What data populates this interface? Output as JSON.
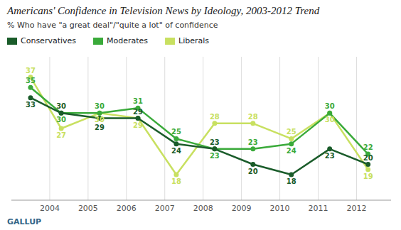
{
  "chart_data": {
    "type": "line",
    "title": "Americans' Confidence in Television News by Ideology, 2003-2012 Trend",
    "subtitle": "% Who have \"a great deal\"/\"quite a lot\" of confidence",
    "annotations": [
      "GALLUP"
    ],
    "x": [
      2003.5,
      2004.3,
      2005.3,
      2006.3,
      2007.3,
      2008.3,
      2009.3,
      2010.3,
      2011.3,
      2012.3
    ],
    "series": [
      {
        "name": "Conservatives",
        "color": "#1a5c2a",
        "values": [
          33,
          30,
          29,
          29,
          24,
          23,
          20,
          18,
          23,
          20
        ]
      },
      {
        "name": "Moderates",
        "color": "#3aaa3a",
        "values": [
          35,
          30,
          30,
          31,
          25,
          23,
          23,
          24,
          30,
          22
        ]
      },
      {
        "name": "Liberals",
        "color": "#c8e060",
        "values": [
          37,
          27,
          30,
          29,
          18,
          28,
          28,
          25,
          30,
          19
        ]
      }
    ],
    "xlim": [
      2003.0,
      2012.9
    ],
    "xticks": [
      2004,
      2005,
      2006,
      2007,
      2008,
      2009,
      2010,
      2011,
      2012
    ],
    "ylim": [
      13,
      41
    ],
    "tick_labels": "x",
    "grid": true,
    "legend": "top",
    "data_labels": true,
    "marker": "circle",
    "line_style": "solid"
  }
}
